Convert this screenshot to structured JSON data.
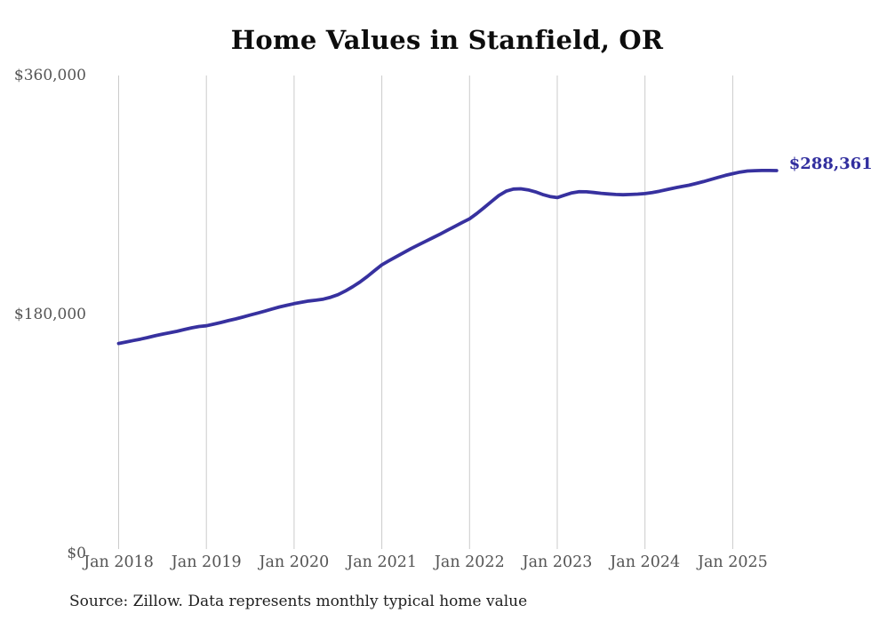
{
  "title": "Home Values in Stanfield, OR",
  "source_note": "Source: Zillow. Data represents monthly typical home value",
  "end_label": "$288,361",
  "colors": {
    "line": "#37319f",
    "grid": "#cbcbcb",
    "axis_label": "#545454",
    "title": "#0d0d0d",
    "end_label": "#312e9e"
  },
  "chart_data": {
    "type": "line",
    "title": "Home Values in Stanfield, OR",
    "xlabel": "",
    "ylabel": "",
    "x_unit": "month",
    "start_month": "Jan 2018",
    "end_month": "Jul 2025",
    "x_labels": [
      "Jan 2018",
      "Jan 2019",
      "Jan 2020",
      "Jan 2021",
      "Jan 2022",
      "Jan 2023",
      "Jan 2024",
      "Jan 2025"
    ],
    "y_ticks": [
      {
        "label": "$360,000",
        "value": 360000
      },
      {
        "label": "$180,000",
        "value": 180000
      },
      {
        "label": "$0",
        "value": 0
      }
    ],
    "ylim": [
      0,
      360000
    ],
    "grid": "vertical-only",
    "legend": "none",
    "final_value": 288361,
    "series": [
      {
        "name": "Typical home value",
        "values": [
          158000,
          159100,
          160200,
          161300,
          162500,
          163800,
          165000,
          166100,
          167200,
          168500,
          169800,
          170800,
          171300,
          172500,
          173800,
          175200,
          176500,
          177900,
          179400,
          180900,
          182400,
          184000,
          185500,
          186800,
          188000,
          189000,
          190000,
          190600,
          191400,
          192800,
          194800,
          197500,
          200700,
          204300,
          208400,
          212900,
          217300,
          220400,
          223500,
          226500,
          229500,
          232300,
          235000,
          237800,
          240500,
          243400,
          246300,
          249200,
          252000,
          256000,
          260500,
          265000,
          269500,
          272800,
          274400,
          274600,
          273800,
          272300,
          270300,
          268800,
          268000,
          269800,
          271500,
          272400,
          272300,
          271800,
          271200,
          270700,
          270300,
          270100,
          270300,
          270600,
          271000,
          271800,
          272800,
          274000,
          275200,
          276300,
          277300,
          278600,
          280000,
          281600,
          283200,
          284700,
          286000,
          287200,
          288000,
          288300,
          288400,
          288400,
          288361
        ]
      }
    ]
  }
}
